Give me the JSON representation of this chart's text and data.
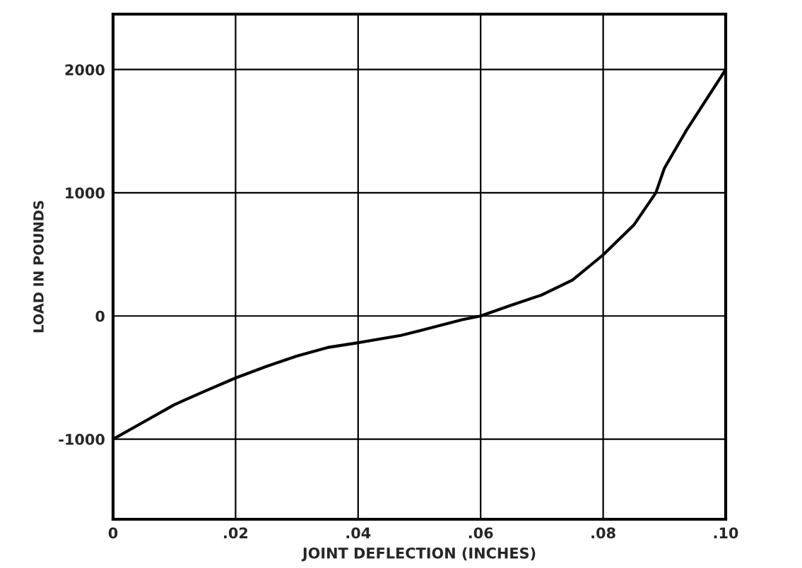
{
  "chart_data": {
    "type": "line",
    "xlabel": "JOINT DEFLECTION (INCHES)",
    "ylabel": "LOAD IN POUNDS",
    "xlim": [
      0,
      0.1
    ],
    "ylim": [
      -1650,
      2450
    ],
    "xticks": [
      {
        "value": 0,
        "label": "0"
      },
      {
        "value": 0.02,
        "label": ".02"
      },
      {
        "value": 0.04,
        "label": ".04"
      },
      {
        "value": 0.06,
        "label": ".06"
      },
      {
        "value": 0.08,
        "label": ".08"
      },
      {
        "value": 0.1,
        "label": ".10"
      }
    ],
    "yticks": [
      {
        "value": -1000,
        "label": "-1000"
      },
      0,
      1000,
      2000
    ],
    "grid": true,
    "marker": "none",
    "line_style": "solid",
    "series": [
      {
        "color": "#000000",
        "x": [
          0,
          0.005,
          0.01,
          0.015,
          0.02,
          0.025,
          0.03,
          0.035,
          0.04,
          0.047,
          0.05,
          0.057,
          0.06,
          0.065,
          0.07,
          0.075,
          0.08,
          0.085,
          0.0886,
          0.09,
          0.0935,
          0.1
        ],
        "values": [
          -1000,
          -860,
          -720,
          -610,
          -503,
          -410,
          -325,
          -256,
          -217,
          -158,
          -120,
          -30,
          0,
          87,
          171,
          292,
          496,
          738,
          1000,
          1200,
          1500,
          2000
        ]
      }
    ]
  }
}
